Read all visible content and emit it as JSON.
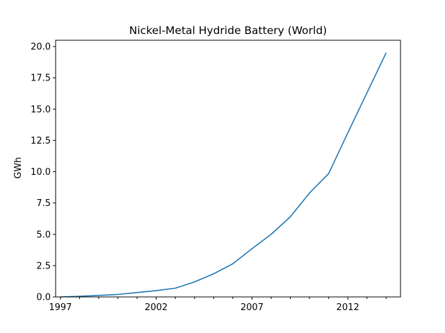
{
  "chart_data": {
    "type": "line",
    "title": "Nickel-Metal Hydride Battery (World)",
    "xlabel": "",
    "ylabel": "GWh",
    "xlim": [
      1996.75,
      2014.75
    ],
    "ylim": [
      0,
      20.5
    ],
    "xticks": [
      1997,
      1998,
      1999,
      2000,
      2001,
      2002,
      2003,
      2004,
      2005,
      2006,
      2007,
      2008,
      2009,
      2010,
      2011,
      2012,
      2013,
      2014
    ],
    "xtick_labels": [
      "1997",
      "",
      "",
      "",
      "",
      "2002",
      "",
      "",
      "",
      "",
      "2007",
      "",
      "",
      "",
      "",
      "2012",
      "",
      ""
    ],
    "yticks": [
      0.0,
      2.5,
      5.0,
      7.5,
      10.0,
      12.5,
      15.0,
      17.5,
      20.0
    ],
    "ytick_labels": [
      "0.0",
      "2.5",
      "5.0",
      "7.5",
      "10.0",
      "12.5",
      "15.0",
      "17.5",
      "20.0"
    ],
    "grid": false,
    "series": [
      {
        "color": "#1f77b4",
        "x": [
          1997,
          1998,
          1999,
          2000,
          2001,
          2002,
          2003,
          2004,
          2005,
          2006,
          2007,
          2008,
          2009,
          2010,
          2011,
          2012,
          2013,
          2014
        ],
        "y": [
          0.0,
          0.05,
          0.12,
          0.2,
          0.35,
          0.5,
          0.7,
          1.2,
          1.85,
          2.65,
          3.85,
          5.0,
          6.4,
          8.3,
          9.85,
          13.1,
          16.3,
          19.5
        ]
      }
    ]
  }
}
